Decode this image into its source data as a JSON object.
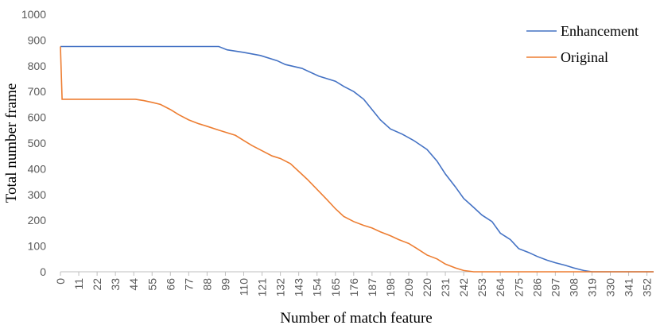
{
  "chart_data": {
    "type": "line",
    "x_label": "Number of match feature",
    "y_label": "Total number frame",
    "xlim": [
      0,
      356
    ],
    "ylim": [
      0,
      1000
    ],
    "xticks": [
      0,
      11,
      22,
      33,
      44,
      55,
      66,
      77,
      88,
      99,
      110,
      121,
      132,
      143,
      154,
      165,
      176,
      187,
      198,
      209,
      220,
      231,
      242,
      253,
      264,
      275,
      286,
      297,
      308,
      319,
      330,
      341,
      352
    ],
    "yticks": [
      0,
      100,
      200,
      300,
      400,
      500,
      600,
      700,
      800,
      900,
      1000
    ],
    "grid": false,
    "legend": "upper right",
    "series": [
      {
        "name": "Enhancement",
        "color": "#4472c4",
        "x": [
          0,
          95,
          100,
          110,
          120,
          130,
          135,
          145,
          155,
          165,
          170,
          176,
          182,
          187,
          192,
          198,
          205,
          212,
          220,
          226,
          231,
          237,
          242,
          248,
          253,
          259,
          264,
          270,
          275,
          281,
          286,
          292,
          297,
          303,
          308,
          314,
          319,
          356
        ],
        "values": [
          875,
          875,
          862,
          852,
          840,
          820,
          805,
          790,
          760,
          740,
          720,
          700,
          670,
          630,
          590,
          555,
          535,
          510,
          475,
          430,
          380,
          330,
          285,
          250,
          220,
          195,
          150,
          125,
          90,
          75,
          60,
          45,
          35,
          25,
          15,
          5,
          0,
          0
        ]
      },
      {
        "name": "Original",
        "color": "#ed7d31",
        "x": [
          0,
          1,
          45,
          50,
          55,
          60,
          66,
          71,
          77,
          83,
          88,
          95,
          100,
          105,
          110,
          115,
          121,
          127,
          132,
          138,
          143,
          148,
          154,
          160,
          165,
          170,
          176,
          182,
          187,
          192,
          198,
          203,
          209,
          214,
          220,
          226,
          231,
          237,
          242,
          248,
          356
        ],
        "values": [
          875,
          670,
          670,
          665,
          658,
          650,
          630,
          610,
          590,
          575,
          565,
          550,
          540,
          530,
          510,
          490,
          470,
          450,
          440,
          420,
          390,
          360,
          320,
          280,
          245,
          215,
          195,
          180,
          170,
          155,
          140,
          125,
          110,
          90,
          65,
          50,
          30,
          15,
          5,
          0,
          0
        ]
      }
    ]
  }
}
